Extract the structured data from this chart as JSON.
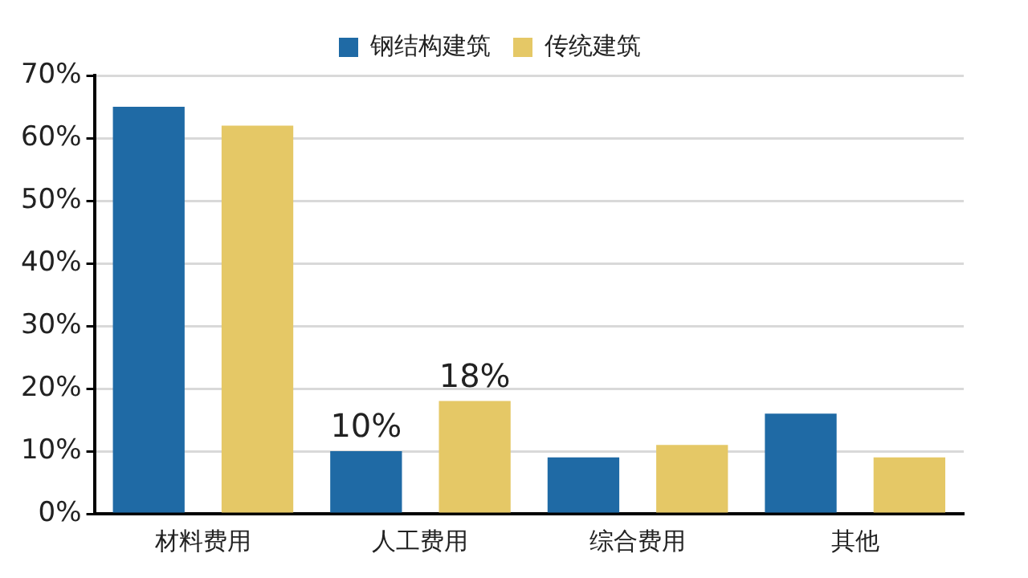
{
  "chart_data": {
    "type": "bar",
    "categories": [
      "材料费用",
      "人工费用",
      "综合费用",
      "其他"
    ],
    "series": [
      {
        "name": "钢结构建筑",
        "color": "#1f6aa5",
        "values": [
          65,
          10,
          9,
          16
        ],
        "value_labels": [
          null,
          "10%",
          null,
          null
        ]
      },
      {
        "name": "传统建筑",
        "color": "#e5c866",
        "values": [
          62,
          18,
          11,
          9
        ],
        "value_labels": [
          null,
          "18%",
          null,
          null
        ]
      }
    ],
    "ylim": [
      0,
      70
    ],
    "yticks": [
      {
        "value": 0,
        "label": "0%"
      },
      {
        "value": 10,
        "label": "10%"
      },
      {
        "value": 20,
        "label": "20%"
      },
      {
        "value": 30,
        "label": "30%"
      },
      {
        "value": 40,
        "label": "40%"
      },
      {
        "value": 50,
        "label": "50%"
      },
      {
        "value": 60,
        "label": "60%"
      },
      {
        "value": 70,
        "label": "70%"
      }
    ],
    "grid": "y",
    "legend": "top"
  }
}
